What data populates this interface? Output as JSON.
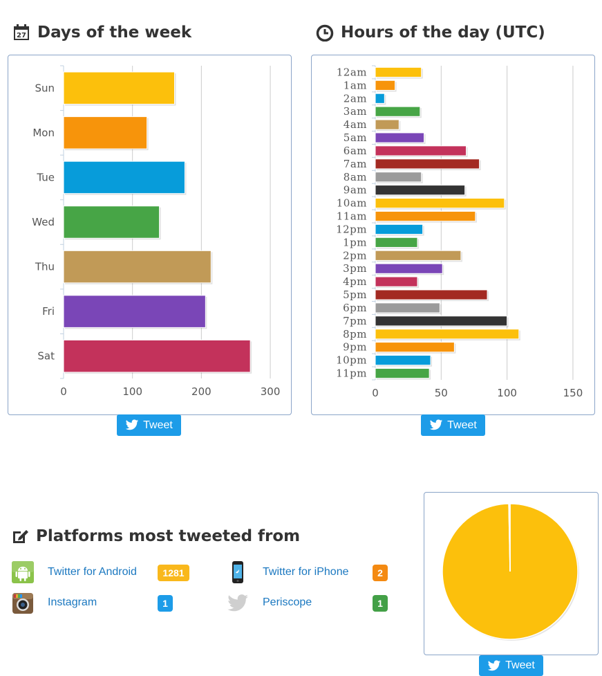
{
  "days_section": {
    "title": "Days of the week",
    "tweet_label": "Tweet"
  },
  "hours_section": {
    "title": "Hours of the day (UTC)",
    "tweet_label": "Tweet"
  },
  "platforms_section": {
    "title": "Platforms most tweeted from",
    "tweet_label": "Tweet",
    "items": [
      {
        "name": "Twitter for Android",
        "count": "1281",
        "badge_color": "#f9b81c",
        "icon": "android-icon"
      },
      {
        "name": "Twitter for iPhone",
        "count": "2",
        "badge_color": "#f48a12",
        "icon": "iphone-icon"
      },
      {
        "name": "Instagram",
        "count": "1",
        "badge_color": "#1d9ce8",
        "icon": "instagram-icon"
      },
      {
        "name": "Periscope",
        "count": "1",
        "badge_color": "#43a047",
        "icon": "periscope-bird-icon"
      }
    ]
  },
  "chart_data": [
    {
      "type": "bar",
      "orientation": "horizontal",
      "title": "Days of the week",
      "categories": [
        "Sun",
        "Mon",
        "Tue",
        "Wed",
        "Thu",
        "Fri",
        "Sat"
      ],
      "values": [
        161,
        121,
        176,
        139,
        214,
        206,
        271
      ],
      "colors": [
        "#fcc00c",
        "#f7940b",
        "#079cda",
        "#47a546",
        "#c19a57",
        "#7a46b7",
        "#c3325b"
      ],
      "xlim": [
        0,
        320
      ],
      "xticks": [
        0,
        100,
        200,
        300
      ],
      "grid": true
    },
    {
      "type": "bar",
      "orientation": "horizontal",
      "title": "Hours of the day (UTC)",
      "categories": [
        "12am",
        "1am",
        "2am",
        "3am",
        "4am",
        "5am",
        "6am",
        "7am",
        "8am",
        "9am",
        "10am",
        "11am",
        "12pm",
        "1pm",
        "2pm",
        "3pm",
        "4pm",
        "5pm",
        "6pm",
        "7pm",
        "8pm",
        "9pm",
        "10pm",
        "11pm"
      ],
      "values": [
        35,
        15,
        7,
        34,
        18,
        37,
        69,
        79,
        35,
        68,
        98,
        76,
        36,
        32,
        65,
        51,
        32,
        85,
        49,
        100,
        109,
        60,
        42,
        41
      ],
      "colors": [
        "#fcc00c",
        "#f7940b",
        "#079cda",
        "#47a546",
        "#c19a57",
        "#7a46b7",
        "#c3325b",
        "#a32a22",
        "#9b9b9b",
        "#333333"
      ],
      "xlim": [
        0,
        160
      ],
      "xticks": [
        0,
        50,
        100,
        150
      ],
      "grid": true
    },
    {
      "type": "pie",
      "title": "Platforms most tweeted from",
      "labels": [
        "Twitter for Android",
        "Twitter for iPhone",
        "Instagram",
        "Periscope"
      ],
      "values": [
        1281,
        2,
        1,
        1
      ],
      "colors": [
        "#fcc00c",
        "#f7940b",
        "#079cda",
        "#47a546"
      ]
    }
  ]
}
